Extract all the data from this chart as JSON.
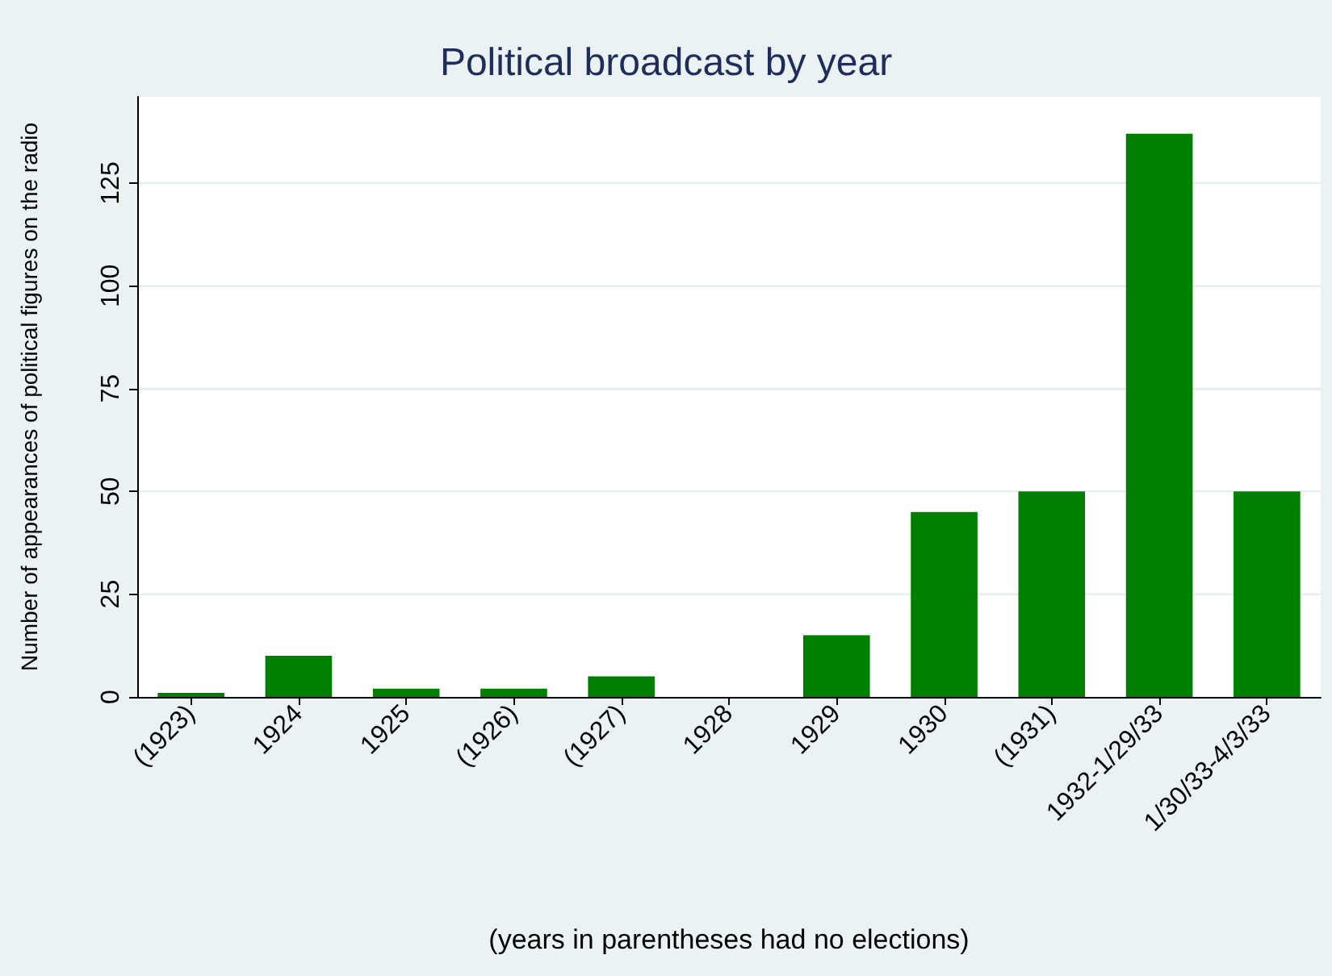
{
  "chart_data": {
    "type": "bar",
    "title": "Political broadcast by year",
    "xlabel": "(years in parentheses had no elections)",
    "ylabel": "Number of appearances of political figures on the radio",
    "categories": [
      "(1923)",
      "1924",
      "1925",
      "(1926)",
      "(1927)",
      "1928",
      "1929",
      "1930",
      "(1931)",
      "1932-1/29/33",
      "1/30/33-4/3/33"
    ],
    "values": [
      1,
      10,
      2,
      2,
      5,
      0,
      15,
      45,
      50,
      137,
      50
    ],
    "color": "#007f00",
    "ylim": [
      0,
      146
    ],
    "yticks": [
      0,
      25,
      50,
      75,
      100,
      125
    ],
    "grid": "y"
  }
}
